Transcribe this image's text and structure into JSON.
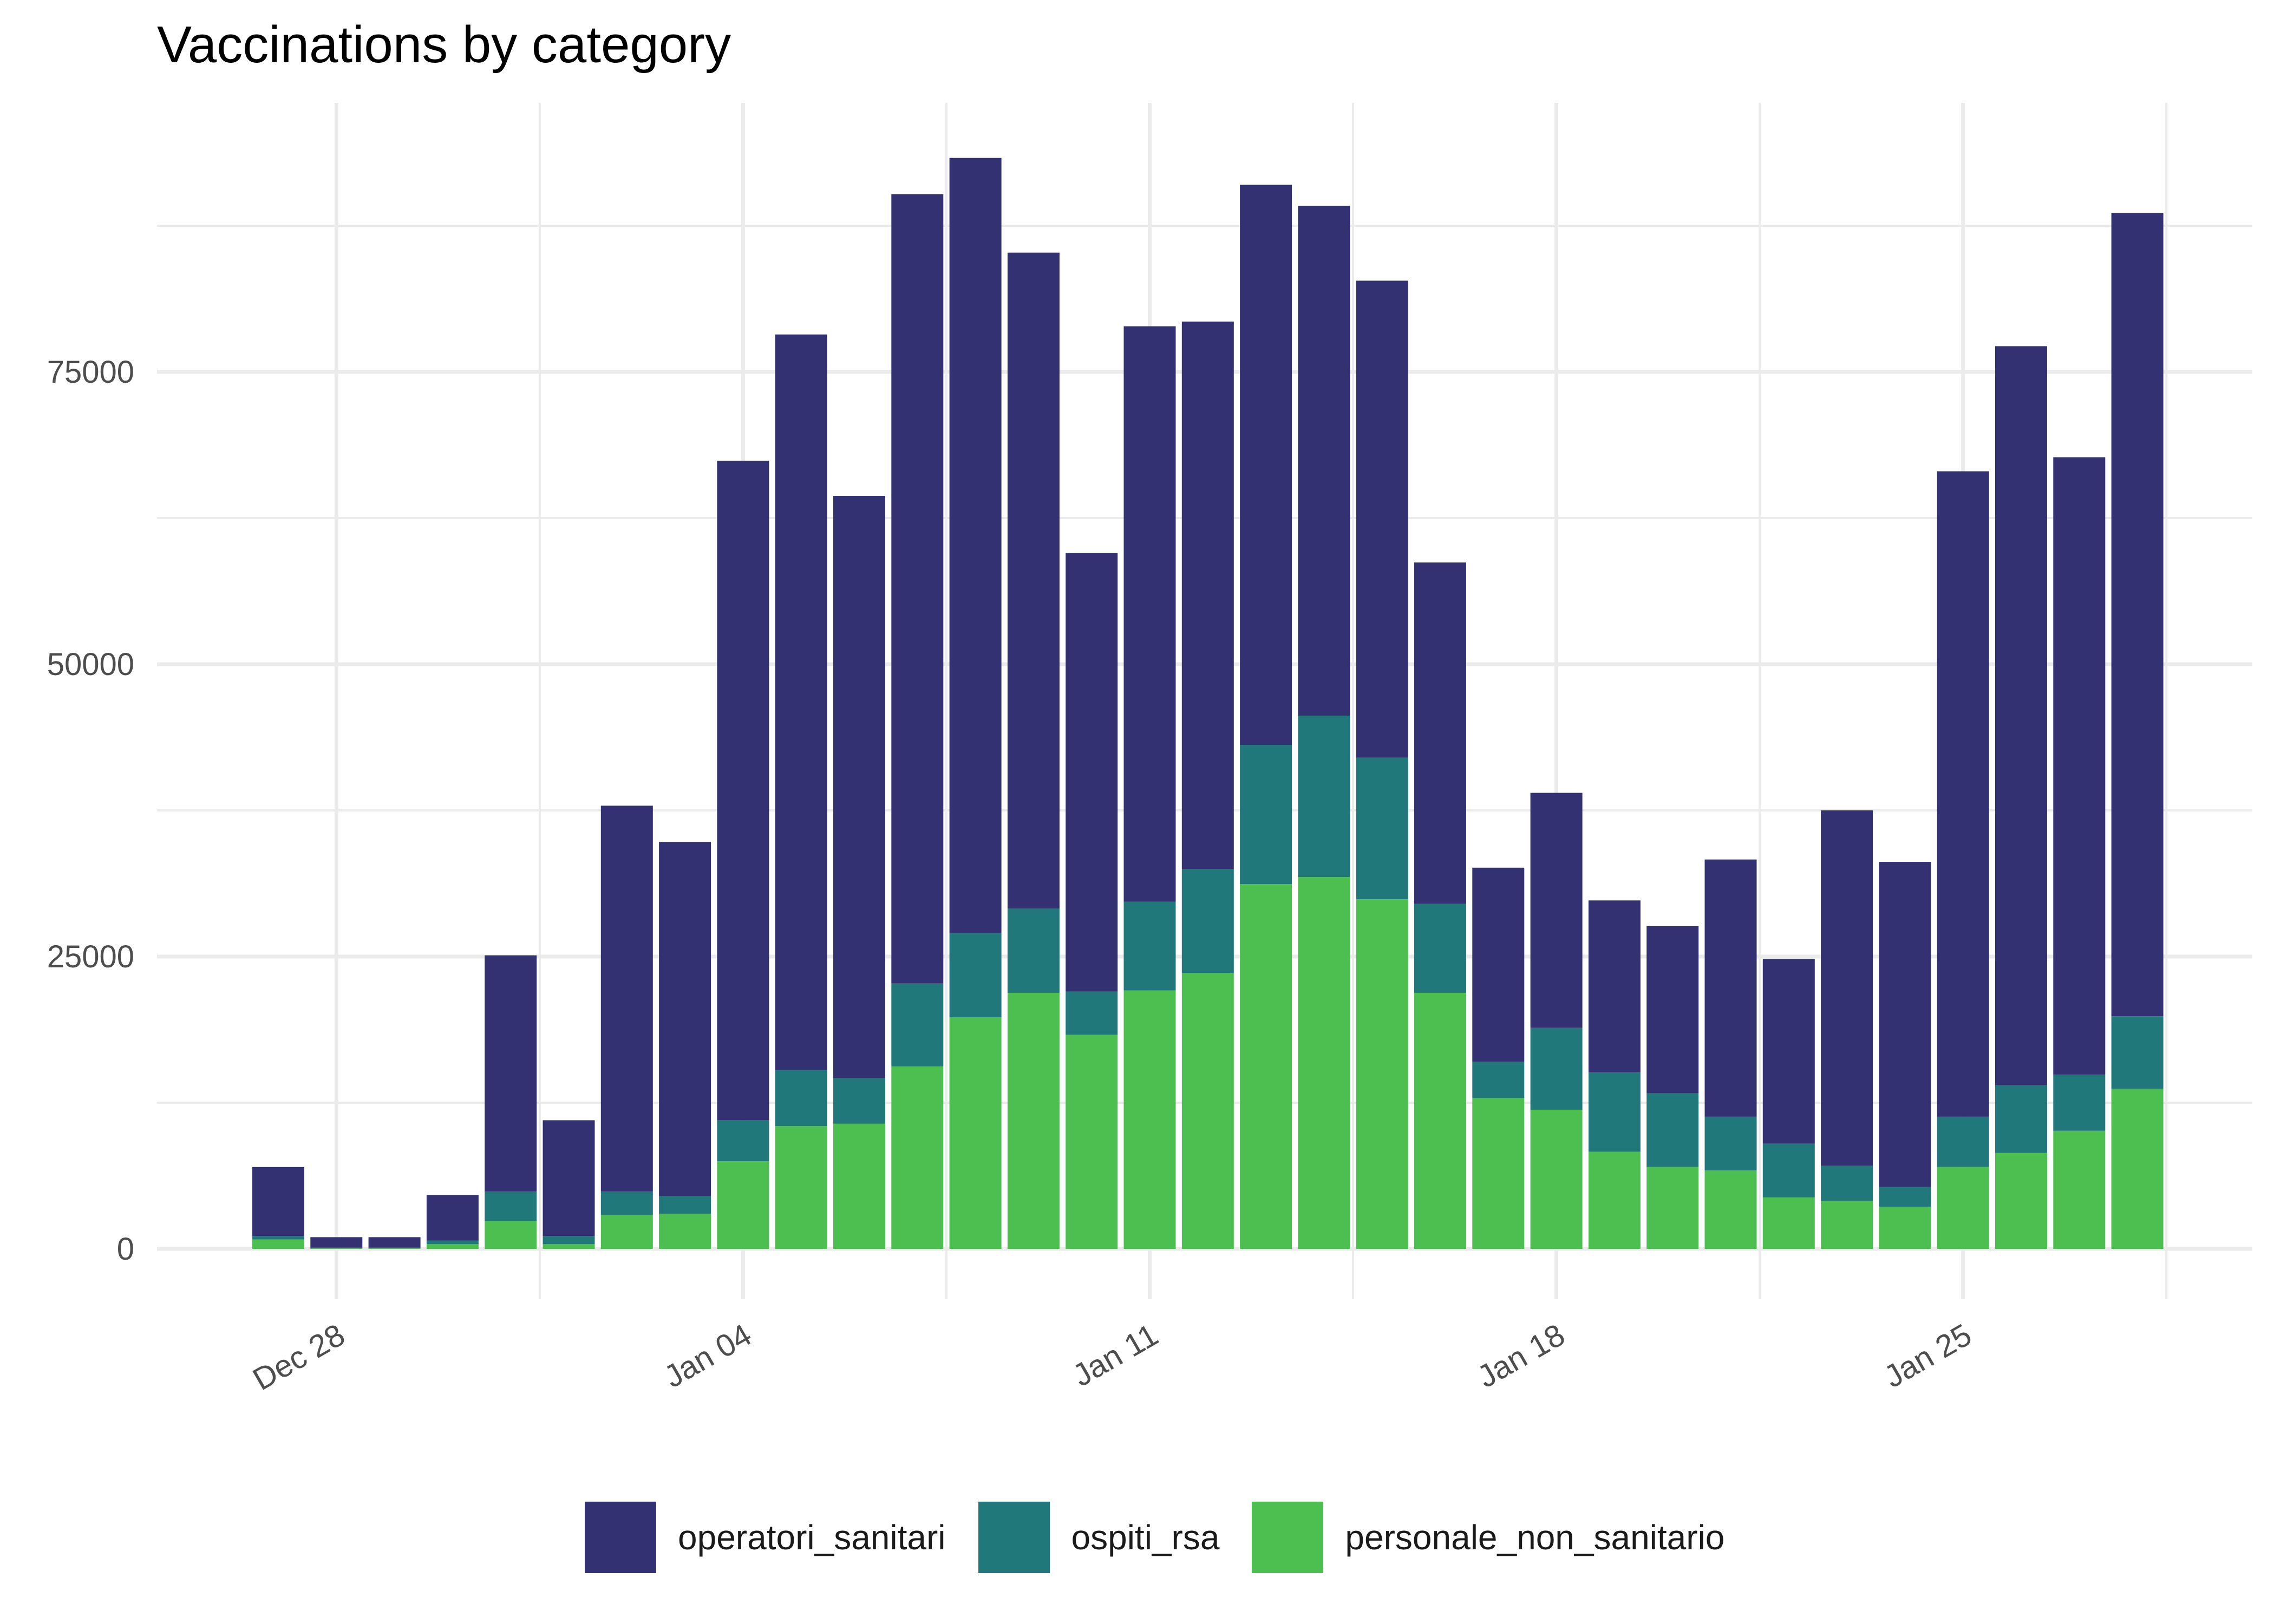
{
  "chart_data": {
    "type": "bar",
    "stacked": true,
    "title": "Vaccinations by category",
    "xlabel": "",
    "ylabel": "",
    "x_axis": "date",
    "x_ticks": [
      "Dec 28",
      "Jan 04",
      "Jan 11",
      "Jan 18",
      "Jan 25"
    ],
    "y_ticks": [
      0,
      25000,
      50000,
      75000
    ],
    "ylim": [
      0,
      95000
    ],
    "grid": true,
    "legend_position": "bottom",
    "categories": [
      "2020-12-27",
      "2020-12-28",
      "2020-12-29",
      "2020-12-30",
      "2020-12-31",
      "2021-01-01",
      "2021-01-02",
      "2021-01-03",
      "2021-01-04",
      "2021-01-05",
      "2021-01-06",
      "2021-01-07",
      "2021-01-08",
      "2021-01-09",
      "2021-01-10",
      "2021-01-11",
      "2021-01-12",
      "2021-01-13",
      "2021-01-14",
      "2021-01-15",
      "2021-01-16",
      "2021-01-17",
      "2021-01-18",
      "2021-01-19",
      "2021-01-20",
      "2021-01-21",
      "2021-01-22",
      "2021-01-23",
      "2021-01-24",
      "2021-01-25",
      "2021-01-26",
      "2021-01-27",
      "2021-01-28"
    ],
    "series": [
      {
        "name": "personale_non_sanitario",
        "color": "#4dbf50",
        "values": [
          800,
          50,
          50,
          400,
          2400,
          400,
          2900,
          3000,
          7500,
          10500,
          10700,
          15600,
          19800,
          21900,
          18300,
          22100,
          23600,
          31200,
          31800,
          29900,
          21900,
          12900,
          11900,
          8300,
          7000,
          6700,
          4400,
          4100,
          3600,
          7000,
          8200,
          10100,
          13700
        ]
      },
      {
        "name": "ospiti_rsa",
        "color": "#20787a",
        "values": [
          300,
          50,
          50,
          300,
          2500,
          700,
          2000,
          1500,
          3500,
          4800,
          3900,
          7100,
          7200,
          7200,
          3700,
          7600,
          8900,
          11900,
          13800,
          12100,
          7600,
          3100,
          7000,
          6800,
          6300,
          4600,
          4600,
          3000,
          1700,
          4300,
          5800,
          4800,
          6200
        ]
      },
      {
        "name": "operatori_sanitari",
        "color": "#333172",
        "values": [
          5900,
          900,
          900,
          3900,
          20200,
          9900,
          33000,
          30300,
          56400,
          62900,
          49800,
          67500,
          66300,
          56100,
          37500,
          49200,
          46800,
          47900,
          43600,
          40800,
          29200,
          16600,
          20100,
          14700,
          14300,
          22000,
          15800,
          30400,
          27800,
          55200,
          63200,
          52800,
          68700
        ]
      }
    ]
  },
  "legend": {
    "items": [
      {
        "label": "operatori_sanitari",
        "color": "#333172"
      },
      {
        "label": "ospiti_rsa",
        "color": "#20787a"
      },
      {
        "label": "personale_non_sanitario",
        "color": "#4dbf50"
      }
    ]
  }
}
